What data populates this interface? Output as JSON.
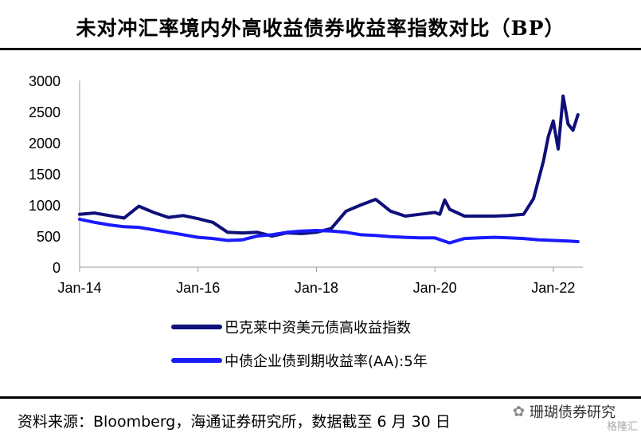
{
  "header": {
    "title": "未对冲汇率境内外高收益债券收益率指数对比（BP）"
  },
  "footer": {
    "source": "资料来源：Bloomberg，海通证券研究所，数据截至 6 月 30 日",
    "watermark": "珊瑚债券研究",
    "watermark_corner": "格隆汇"
  },
  "colors": {
    "series1": "#0f0f7a",
    "series2": "#1a1aff",
    "axis": "#999999"
  },
  "chart_data": {
    "type": "line",
    "title": "未对冲汇率境内外高收益债券收益率指数对比（BP）",
    "ylim": [
      0,
      3000
    ],
    "yticks": [
      0,
      500,
      1000,
      1500,
      2000,
      2500,
      3000
    ],
    "xlim": [
      "2014-01",
      "2022-07"
    ],
    "xticks": [
      "Jan-14",
      "Jan-16",
      "Jan-18",
      "Jan-20",
      "Jan-22"
    ],
    "legend_position": "bottom",
    "series": [
      {
        "name": "巴克莱中资美元债高收益指数",
        "x": [
          "2014-01",
          "2014-04",
          "2014-07",
          "2014-10",
          "2015-01",
          "2015-04",
          "2015-07",
          "2015-10",
          "2016-01",
          "2016-04",
          "2016-07",
          "2016-10",
          "2017-01",
          "2017-04",
          "2017-07",
          "2017-10",
          "2018-01",
          "2018-04",
          "2018-07",
          "2018-10",
          "2019-01",
          "2019-04",
          "2019-07",
          "2019-10",
          "2020-01",
          "2020-02",
          "2020-03",
          "2020-04",
          "2020-07",
          "2020-10",
          "2021-01",
          "2021-04",
          "2021-07",
          "2021-09",
          "2021-10",
          "2021-11",
          "2021-12",
          "2022-01",
          "2022-02",
          "2022-03",
          "2022-04",
          "2022-05",
          "2022-06"
        ],
        "values": [
          850,
          870,
          830,
          790,
          980,
          880,
          800,
          830,
          780,
          720,
          560,
          550,
          560,
          500,
          550,
          540,
          560,
          620,
          900,
          1000,
          1090,
          900,
          820,
          850,
          880,
          850,
          1080,
          930,
          820,
          820,
          820,
          830,
          850,
          1100,
          1400,
          1700,
          2100,
          2350,
          1900,
          2750,
          2300,
          2200,
          2450
        ]
      },
      {
        "name": "中债企业债到期收益率(AA):5年",
        "x": [
          "2014-01",
          "2014-04",
          "2014-07",
          "2014-10",
          "2015-01",
          "2015-04",
          "2015-07",
          "2015-10",
          "2016-01",
          "2016-04",
          "2016-07",
          "2016-10",
          "2017-01",
          "2017-04",
          "2017-07",
          "2017-10",
          "2018-01",
          "2018-04",
          "2018-07",
          "2018-10",
          "2019-01",
          "2019-04",
          "2019-07",
          "2019-10",
          "2020-01",
          "2020-04",
          "2020-07",
          "2020-10",
          "2021-01",
          "2021-04",
          "2021-07",
          "2021-10",
          "2022-01",
          "2022-04",
          "2022-06"
        ],
        "values": [
          770,
          720,
          680,
          650,
          640,
          600,
          560,
          520,
          480,
          460,
          430,
          440,
          500,
          520,
          560,
          580,
          590,
          580,
          560,
          520,
          510,
          490,
          480,
          470,
          470,
          390,
          460,
          470,
          480,
          470,
          460,
          440,
          430,
          420,
          410
        ]
      }
    ]
  }
}
